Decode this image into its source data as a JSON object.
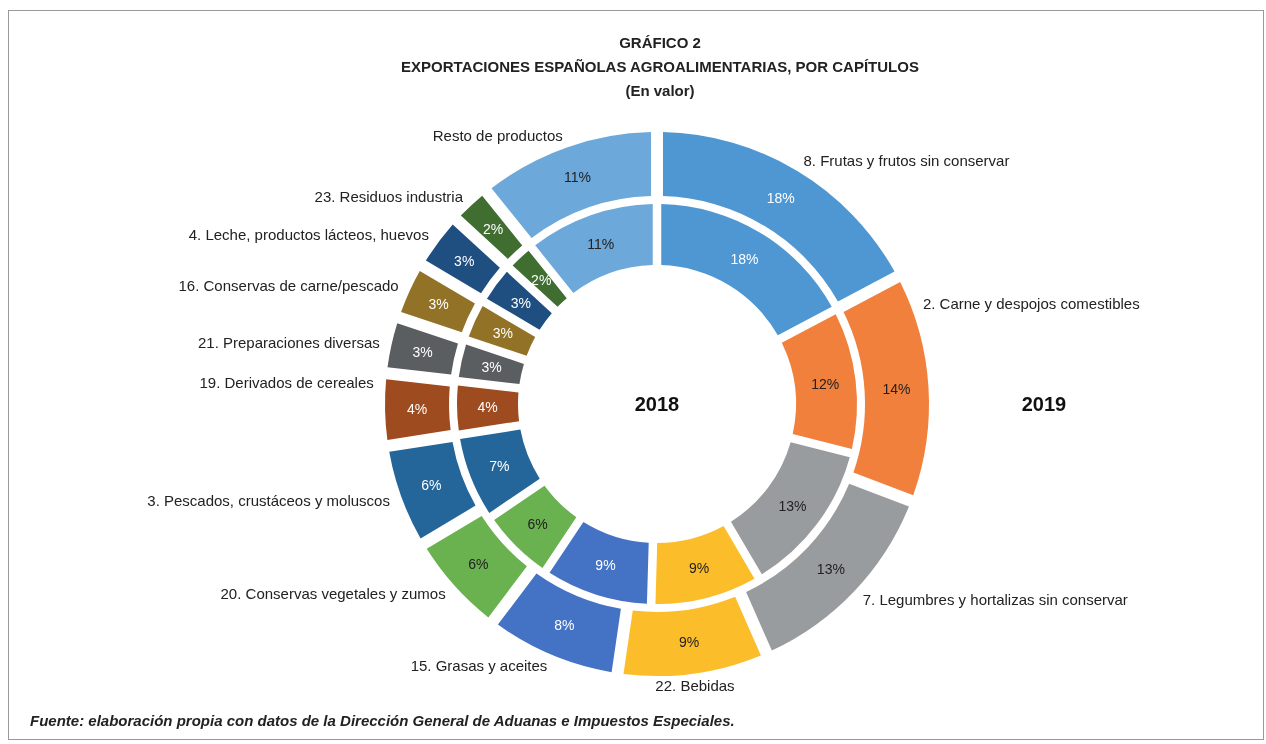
{
  "chart_data": {
    "type": "donut",
    "title": "GRÁFICO 2",
    "subtitle": "EXPORTACIONES ESPAÑOLAS AGROALIMENTARIAS, POR CAPÍTULOS\n(En valor)",
    "categories": [
      "8. Frutas y frutos sin conservar",
      "2. Carne y despojos comestibles",
      "7. Legumbres y hortalizas sin conservar",
      "22. Bebidas",
      "15. Grasas y aceites",
      "20. Conservas vegetales y zumos",
      "3. Pescados, crustáceos y moluscos",
      "19. Derivados de cereales",
      "21. Preparaciones diversas",
      "16. Conservas de carne/pescado",
      "4. Leche, productos lácteos, huevos",
      "23. Residuos industria",
      "Resto de productos"
    ],
    "colors": [
      "#4f97d3",
      "#f0803c",
      "#999c9e",
      "#fbbd2a",
      "#4472c4",
      "#6ab150",
      "#25669a",
      "#9e4b1f",
      "#5a5e60",
      "#917227",
      "#1f4e80",
      "#3f6e30",
      "#6ca9da"
    ],
    "series": [
      {
        "name": "2019",
        "values": [
          18,
          14,
          13,
          9,
          8,
          6,
          6,
          4,
          3,
          3,
          3,
          2,
          11
        ],
        "value_labels": [
          "18%",
          "14%",
          "13%",
          "9%",
          "8%",
          "6%",
          "6%",
          "4%",
          "3%",
          "3%",
          "3%",
          "2%",
          "11%"
        ]
      },
      {
        "name": "2018",
        "values": [
          18,
          12,
          13,
          9,
          9,
          6,
          7,
          4,
          3,
          3,
          3,
          2,
          11
        ],
        "value_labels": [
          "18%",
          "12%",
          "13%",
          "9%",
          "9%",
          "6%",
          "7%",
          "4%",
          "3%",
          "3%",
          "3%",
          "2%",
          "11%"
        ]
      }
    ],
    "annotations": [
      "Fuente: elaboración propia con datos de la Dirección General de Aduanas e Impuestos Especiales."
    ]
  }
}
